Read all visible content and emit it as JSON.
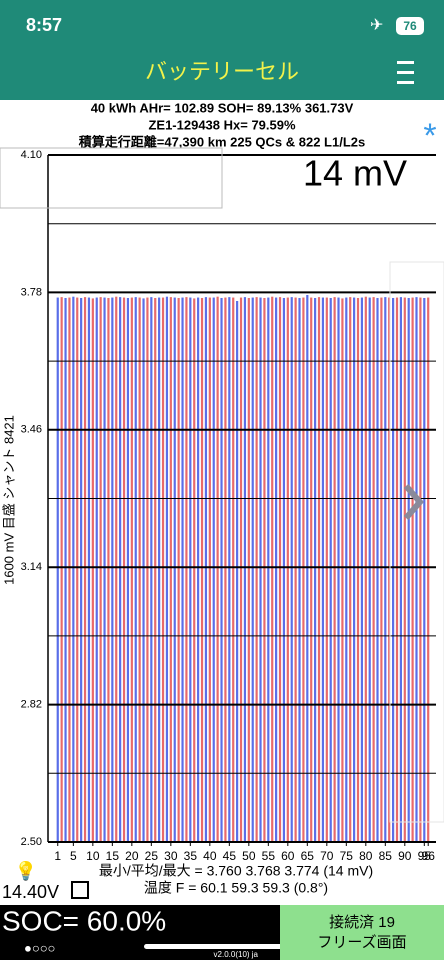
{
  "status": {
    "time": "8:57",
    "battery": "76"
  },
  "header": {
    "title": "バッテリーセル"
  },
  "info": {
    "line1": "40 kWh  AHr= 102.89  SOH= 89.13%   361.73V",
    "line2": "ZE1-129438    Hx= 79.59%",
    "line3": "積算走行距離=47,390 km 225 QCs & 822 L1/L2s",
    "star": "*"
  },
  "chart_data": {
    "type": "bar",
    "ylabel": "1600 mV 目盛   シャント 8421",
    "annotation": "14 mV",
    "stats": "最小/平均/最大 = 3.760 3.768 3.774 (14 mV)",
    "temperature": "温度 F = 60.1  59.3  59.3 (0.8°)",
    "colors": [
      "#5a6ee8",
      "#e86a6a"
    ],
    "x": [
      1,
      2,
      3,
      4,
      5,
      6,
      7,
      8,
      9,
      10,
      11,
      12,
      13,
      14,
      15,
      16,
      17,
      18,
      19,
      20,
      21,
      22,
      23,
      24,
      25,
      26,
      27,
      28,
      29,
      30,
      31,
      32,
      33,
      34,
      35,
      36,
      37,
      38,
      39,
      40,
      41,
      42,
      43,
      44,
      45,
      46,
      47,
      48,
      49,
      50,
      51,
      52,
      53,
      54,
      55,
      56,
      57,
      58,
      59,
      60,
      61,
      62,
      63,
      64,
      65,
      66,
      67,
      68,
      69,
      70,
      71,
      72,
      73,
      74,
      75,
      76,
      77,
      78,
      79,
      80,
      81,
      82,
      83,
      84,
      85,
      86,
      87,
      88,
      89,
      90,
      91,
      92,
      93,
      94,
      95,
      96
    ],
    "values": [
      3.768,
      3.769,
      3.767,
      3.768,
      3.77,
      3.768,
      3.767,
      3.769,
      3.768,
      3.766,
      3.768,
      3.769,
      3.768,
      3.767,
      3.768,
      3.77,
      3.769,
      3.768,
      3.767,
      3.768,
      3.769,
      3.768,
      3.766,
      3.768,
      3.769,
      3.767,
      3.768,
      3.768,
      3.77,
      3.769,
      3.768,
      3.767,
      3.768,
      3.769,
      3.768,
      3.766,
      3.768,
      3.767,
      3.769,
      3.768,
      3.768,
      3.77,
      3.767,
      3.768,
      3.769,
      3.768,
      3.76,
      3.768,
      3.769,
      3.767,
      3.768,
      3.769,
      3.768,
      3.767,
      3.768,
      3.77,
      3.768,
      3.769,
      3.767,
      3.768,
      3.769,
      3.768,
      3.767,
      3.768,
      3.774,
      3.768,
      3.767,
      3.769,
      3.768,
      3.768,
      3.767,
      3.769,
      3.768,
      3.766,
      3.768,
      3.769,
      3.768,
      3.767,
      3.768,
      3.77,
      3.768,
      3.769,
      3.767,
      3.768,
      3.769,
      3.768,
      3.767,
      3.768,
      3.769,
      3.768,
      3.767,
      3.768,
      3.769,
      3.768,
      3.767,
      3.768
    ],
    "xlim": [
      -1.5,
      98
    ],
    "xticks": [
      1,
      5,
      10,
      15,
      20,
      25,
      30,
      35,
      40,
      45,
      50,
      55,
      60,
      65,
      70,
      75,
      80,
      85,
      90,
      95,
      96
    ],
    "ylim": [
      2.5,
      4.1
    ],
    "yticks": [
      {
        "value": 4.1,
        "label": "4.10"
      },
      3.78,
      3.46,
      3.14,
      2.82,
      {
        "value": 2.5,
        "label": "2.50"
      }
    ],
    "ygrid_minor": [
      3.94,
      3.62,
      3.3,
      2.98,
      2.66
    ],
    "grid": true
  },
  "footer": {
    "pack_voltage": "14.40V",
    "soc": "SOC= 60.0%",
    "dots": "●○○○",
    "version": "v2.0.0(10) ja",
    "connected": "接続済 19",
    "freeze": "フリーズ画面"
  }
}
